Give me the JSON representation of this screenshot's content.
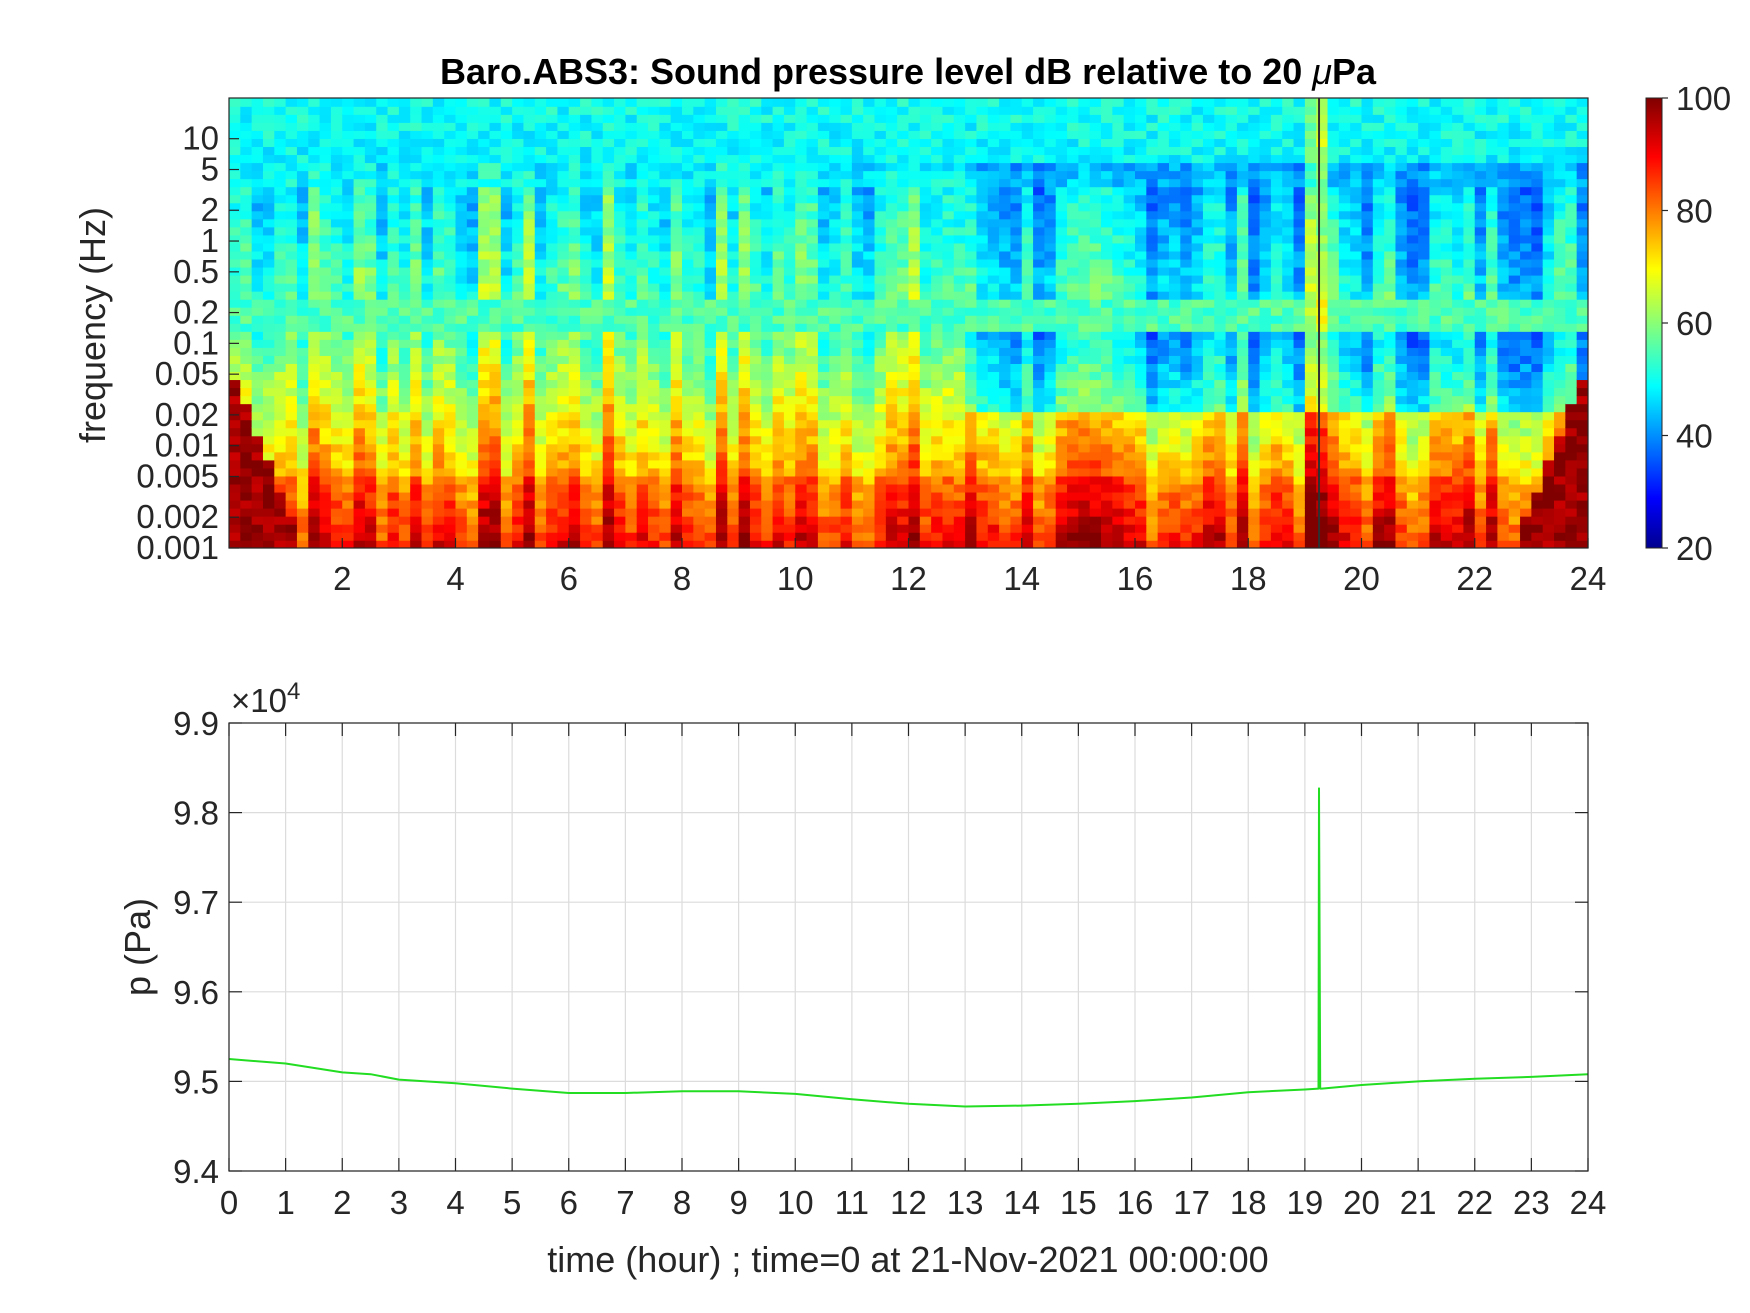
{
  "chart_data": [
    {
      "type": "heatmap",
      "title": "Baro.ABS3: Sound pressure level dB relative to 20 μPa",
      "title_prefix": "Baro.ABS3: Sound pressure level dB relative to 20 ",
      "title_mu": "μ",
      "title_suffix": "Pa",
      "xlabel": "",
      "ylabel": "frequency (Hz)",
      "xlim": [
        0,
        24
      ],
      "ylim": [
        0.001,
        25
      ],
      "yscale": "log",
      "x_ticks": [
        "2",
        "4",
        "6",
        "8",
        "10",
        "12",
        "14",
        "16",
        "18",
        "20",
        "22",
        "24"
      ],
      "y_ticks": [
        "0.001",
        "0.002",
        "0.005",
        "0.01",
        "0.02",
        "0.05",
        "0.1",
        "0.2",
        "0.5",
        "1",
        "2",
        "5",
        "10"
      ],
      "colorbar": {
        "colormap": "jet",
        "range": [
          20,
          100
        ],
        "ticks": [
          "20",
          "40",
          "60",
          "80",
          "100"
        ]
      },
      "event_marker_hour": 19.25,
      "colors": {
        "colormap_low": "#00008f",
        "colormap_high": "#800000",
        "quiet_band": "#2a8df0"
      }
    },
    {
      "type": "line",
      "title": "",
      "xlabel": "time (hour) ; time=0 at 21-Nov-2021 00:00:00",
      "ylabel": "p (Pa)",
      "xlim": [
        0,
        24
      ],
      "ylim": [
        94000,
        99000
      ],
      "y_exponent": "×10",
      "y_exponent_power": "4",
      "grid": true,
      "x_ticks": [
        "0",
        "1",
        "2",
        "3",
        "4",
        "5",
        "6",
        "7",
        "8",
        "9",
        "10",
        "11",
        "12",
        "13",
        "14",
        "15",
        "16",
        "17",
        "18",
        "19",
        "20",
        "21",
        "22",
        "23",
        "24"
      ],
      "y_ticks": [
        "9.4",
        "9.5",
        "9.6",
        "9.7",
        "9.8",
        "9.9"
      ],
      "series": [
        {
          "color": "#22dd22",
          "x": [
            0,
            1,
            2,
            2.5,
            3,
            4,
            5,
            6,
            7,
            8,
            9,
            10,
            11,
            12,
            13,
            14,
            15,
            16,
            17,
            18,
            19,
            19.24,
            19.25,
            19.27,
            19.3,
            20,
            21,
            22,
            23,
            24
          ],
          "y": [
            95250,
            95200,
            95100,
            95080,
            95020,
            94980,
            94920,
            94870,
            94870,
            94890,
            94890,
            94860,
            94800,
            94750,
            94720,
            94730,
            94750,
            94780,
            94820,
            94880,
            94910,
            94920,
            98270,
            94920,
            94920,
            94960,
            95000,
            95030,
            95050,
            95080
          ]
        }
      ]
    }
  ]
}
